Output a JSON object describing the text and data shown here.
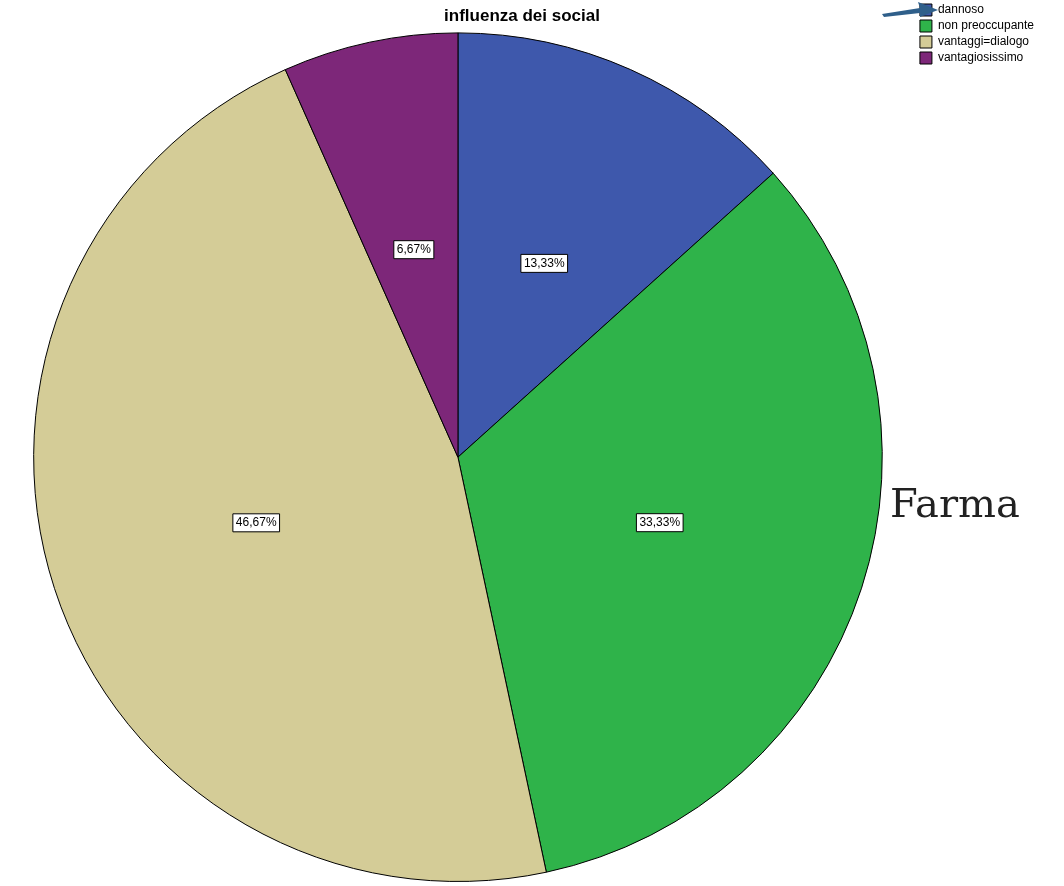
{
  "chart_data": {
    "type": "pie",
    "title": "influenza dei social",
    "categories": [
      "dannoso",
      "non preoccupante",
      "vantaggi=dialogo",
      "vantagiosissimo"
    ],
    "values": [
      13.33,
      33.33,
      46.67,
      6.67
    ],
    "colors": [
      "#3e58ac",
      "#2fb34a",
      "#d4cc97",
      "#7d2779"
    ],
    "value_labels": [
      "13,33%",
      "33,33%",
      "46,67%",
      "6,67%"
    ],
    "legend": "top right",
    "annotations": [
      "Farma"
    ]
  }
}
